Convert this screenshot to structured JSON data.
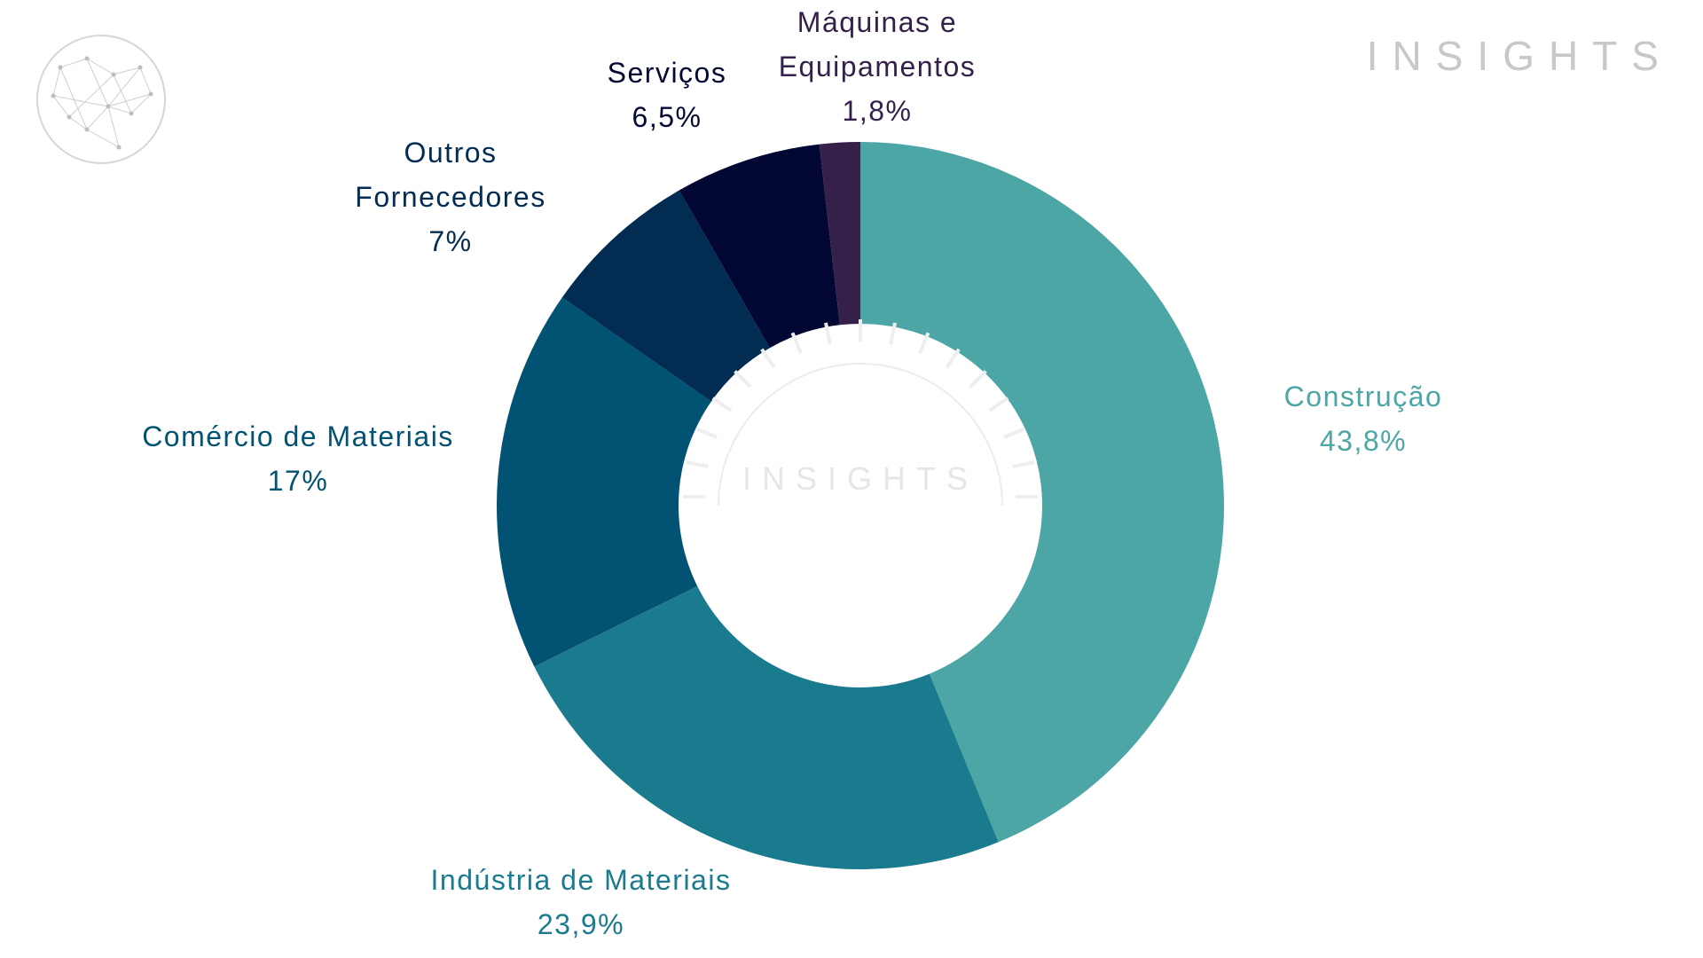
{
  "brand": {
    "wordmark": "INSIGHTS",
    "watermark": "INSIGHTS",
    "logo_icon": "globe-network-icon"
  },
  "colors": {
    "construcao": "#4ca6a5",
    "industria": "#1b7b8e",
    "comercio": "#025273",
    "outros": "#022c51",
    "servicos": "#020733",
    "maquinas": "#35204a",
    "background": "#ffffff",
    "wordmark": "#c8c8c8"
  },
  "chart_data": {
    "type": "pie",
    "donut": true,
    "series": [
      {
        "values": [
          43.8,
          23.9,
          17,
          7,
          6.5,
          1.8
        ]
      }
    ],
    "categories": [
      "Construção",
      "Indústria de Materiais",
      "Comércio de Materiais",
      "Outros Fornecedores",
      "Serviços",
      "Máquinas e Equipamentos"
    ],
    "slices": [
      {
        "label_lines": [
          "Construção"
        ],
        "value_text": "43,8%",
        "value": 43.8,
        "color": "#4ca6a5"
      },
      {
        "label_lines": [
          "Indústria de Materiais"
        ],
        "value_text": "23,9%",
        "value": 23.9,
        "color": "#1b7b8e"
      },
      {
        "label_lines": [
          "Comércio de Materiais"
        ],
        "value_text": "17%",
        "value": 17,
        "color": "#025273"
      },
      {
        "label_lines": [
          "Outros",
          "Fornecedores"
        ],
        "value_text": "7%",
        "value": 7,
        "color": "#022c51"
      },
      {
        "label_lines": [
          "Serviços"
        ],
        "value_text": "6,5%",
        "value": 6.5,
        "color": "#020733"
      },
      {
        "label_lines": [
          "Máquinas e",
          "Equipamentos"
        ],
        "value_text": "1,8%",
        "value": 1.8,
        "color": "#35204a"
      }
    ],
    "start_angle": "12 o'clock",
    "direction": "clockwise",
    "legend": "none",
    "data_labels": "outside"
  }
}
